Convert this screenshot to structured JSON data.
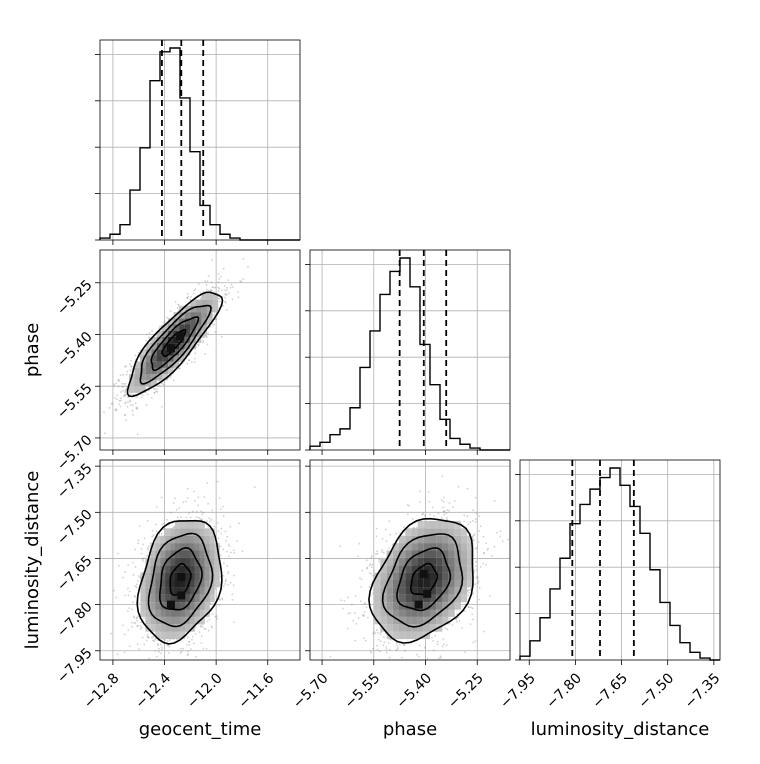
{
  "chart_data": {
    "type": "corner",
    "parameters": [
      "geocent_time",
      "phase",
      "luminosity_distance"
    ],
    "axis_labels": {
      "x": [
        "geocent_time",
        "phase",
        "luminosity_distance"
      ],
      "y": [
        "phase",
        "luminosity_distance"
      ]
    },
    "ranges": {
      "geocent_time": [
        -12.9,
        -11.35
      ],
      "phase": [
        -5.735,
        -5.155
      ],
      "luminosity_distance": [
        -7.98,
        -7.33
      ]
    },
    "ticks": {
      "geocent_time": [
        -12.8,
        -12.4,
        -12.0,
        -11.6
      ],
      "phase": [
        -5.7,
        -5.55,
        -5.4,
        -5.25
      ],
      "luminosity_distance": [
        -7.95,
        -7.8,
        -7.65,
        -7.5,
        -7.35
      ]
    },
    "tick_labels": {
      "geocent_time": [
        "−12.8",
        "−12.4",
        "−12.0",
        "−11.6"
      ],
      "phase": [
        "−5.70",
        "−5.55",
        "−5.40",
        "−5.25"
      ],
      "luminosity_distance": [
        "−7.95",
        "−7.80",
        "−7.65",
        "−7.50",
        "−7.35"
      ]
    },
    "grid": true,
    "marginals": {
      "geocent_time": {
        "bin_edges_range": [
          -12.9,
          -11.35
        ],
        "n_bins": 20,
        "counts": [
          0.01,
          0.03,
          0.08,
          0.26,
          0.48,
          0.83,
          0.98,
          1.0,
          0.74,
          0.46,
          0.18,
          0.08,
          0.03,
          0.01,
          0.0,
          0.0,
          0.0,
          0.0,
          0.0,
          0.0
        ],
        "quantiles": [
          -12.42,
          -12.27,
          -12.1
        ]
      },
      "phase": {
        "bin_edges_range": [
          -5.735,
          -5.155
        ],
        "n_bins": 20,
        "counts": [
          0.02,
          0.04,
          0.08,
          0.11,
          0.22,
          0.43,
          0.62,
          0.81,
          0.93,
          1.0,
          0.85,
          0.55,
          0.34,
          0.16,
          0.06,
          0.03,
          0.01,
          0.0,
          0.0,
          0.0
        ],
        "quantiles": [
          -5.475,
          -5.405,
          -5.34
        ]
      },
      "luminosity_distance": {
        "bin_edges_range": [
          -7.98,
          -7.33
        ],
        "n_bins": 20,
        "counts": [
          0.02,
          0.1,
          0.22,
          0.37,
          0.53,
          0.71,
          0.81,
          0.89,
          0.95,
          1.0,
          0.91,
          0.8,
          0.66,
          0.47,
          0.3,
          0.18,
          0.09,
          0.04,
          0.01,
          0.0
        ],
        "quantiles": [
          -7.81,
          -7.72,
          -7.61
        ]
      }
    },
    "joint": [
      {
        "x": "geocent_time",
        "y": "phase",
        "mean": [
          -12.33,
          -5.425
        ],
        "sd": [
          0.18,
          0.075
        ],
        "corr": 0.85,
        "peaks": [
          [
            -12.28,
            -5.405
          ],
          [
            -12.35,
            -5.44
          ]
        ]
      },
      {
        "x": "geocent_time",
        "y": "luminosity_distance",
        "mean": [
          -12.28,
          -7.72
        ],
        "sd": [
          0.16,
          0.1
        ],
        "corr": 0.25,
        "peaks": [
          [
            -12.27,
            -7.71
          ],
          [
            -12.27,
            -7.77
          ],
          [
            -12.35,
            -7.8
          ]
        ]
      },
      {
        "x": "phase",
        "y": "luminosity_distance",
        "mean": [
          -5.405,
          -7.72
        ],
        "sd": [
          0.075,
          0.1
        ],
        "corr": 0.3,
        "peaks": [
          [
            -5.405,
            -7.7
          ],
          [
            -5.395,
            -7.765
          ],
          [
            -5.42,
            -7.8
          ]
        ]
      }
    ],
    "contour_levels_sigma": [
      0.5,
      1.0,
      1.5,
      2.0
    ]
  }
}
